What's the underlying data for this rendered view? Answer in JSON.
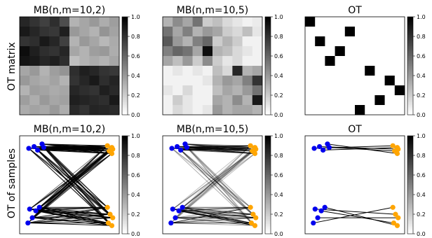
{
  "chart_data": [
    {
      "type": "heatmap",
      "title": "MB(n,m=10,2)",
      "row_label": "OT matrix",
      "colorbar_ticks": [
        "0.0",
        "0.2",
        "0.4",
        "0.6",
        "0.8",
        "1.0"
      ],
      "colorbar_range": [
        0,
        1
      ],
      "colormap": "gray_r",
      "z": [
        [
          0.85,
          0.8,
          0.75,
          0.82,
          0.7,
          0.3,
          0.35,
          0.4,
          0.32,
          0.38
        ],
        [
          0.9,
          0.85,
          0.8,
          0.78,
          0.88,
          0.4,
          0.35,
          0.3,
          0.42,
          0.36
        ],
        [
          0.8,
          0.82,
          0.9,
          0.85,
          0.75,
          0.3,
          0.4,
          0.35,
          0.28,
          0.33
        ],
        [
          0.95,
          0.88,
          0.82,
          0.8,
          0.85,
          0.35,
          0.3,
          0.38,
          0.4,
          0.32
        ],
        [
          0.92,
          0.9,
          0.85,
          0.88,
          0.82,
          0.25,
          0.3,
          0.33,
          0.3,
          0.35
        ],
        [
          0.35,
          0.4,
          0.3,
          0.38,
          0.42,
          0.82,
          0.88,
          0.85,
          0.8,
          0.78
        ],
        [
          0.4,
          0.35,
          0.32,
          0.36,
          0.3,
          0.8,
          0.85,
          0.9,
          0.82,
          0.86
        ],
        [
          0.3,
          0.38,
          0.36,
          0.33,
          0.35,
          0.85,
          0.82,
          0.8,
          0.88,
          0.84
        ],
        [
          0.38,
          0.32,
          0.4,
          0.35,
          0.37,
          0.88,
          0.86,
          0.84,
          0.82,
          0.9
        ],
        [
          0.33,
          0.36,
          0.34,
          0.4,
          0.32,
          0.84,
          0.8,
          0.86,
          0.85,
          0.83
        ]
      ]
    },
    {
      "type": "heatmap",
      "title": "MB(n,m=10,5)",
      "colorbar_ticks": [
        "0.0",
        "0.2",
        "0.4",
        "0.6",
        "0.8",
        "1.0"
      ],
      "colorbar_range": [
        0,
        1
      ],
      "colormap": "gray_r",
      "z": [
        [
          0.3,
          0.45,
          0.35,
          0.55,
          0.2,
          0.25,
          0.15,
          0.1,
          0.05,
          0.08
        ],
        [
          0.55,
          0.35,
          0.5,
          0.3,
          0.4,
          0.35,
          0.2,
          0.15,
          0.25,
          0.1
        ],
        [
          0.65,
          0.4,
          0.3,
          0.5,
          0.6,
          0.2,
          0.3,
          0.2,
          0.05,
          0.05
        ],
        [
          0.5,
          0.6,
          0.55,
          0.35,
          0.95,
          0.3,
          0.25,
          0.15,
          0.1,
          0.05
        ],
        [
          0.35,
          0.25,
          0.4,
          0.2,
          0.45,
          0.2,
          0.1,
          0.15,
          0.05,
          0.05
        ],
        [
          0.05,
          0.1,
          0.05,
          0.1,
          0.05,
          0.25,
          0.15,
          0.85,
          0.3,
          0.35
        ],
        [
          0.05,
          0.05,
          0.05,
          0.05,
          0.1,
          0.3,
          0.4,
          0.35,
          0.5,
          0.8
        ],
        [
          0.1,
          0.05,
          0.15,
          0.05,
          0.05,
          0.25,
          0.35,
          0.3,
          0.4,
          0.55
        ],
        [
          0.05,
          0.2,
          0.1,
          0.05,
          0.05,
          0.35,
          0.3,
          0.45,
          0.3,
          0.9
        ],
        [
          0.05,
          0.15,
          0.1,
          0.05,
          0.1,
          0.4,
          0.3,
          0.35,
          0.35,
          0.3
        ]
      ]
    },
    {
      "type": "heatmap",
      "title": "OT",
      "colorbar_ticks": [
        "0.0",
        "0.2",
        "0.4",
        "0.6",
        "0.8",
        "1.0"
      ],
      "colorbar_range": [
        0,
        1
      ],
      "colormap": "gray_r",
      "z": [
        [
          1,
          0,
          0,
          0,
          0,
          0,
          0,
          0,
          0,
          0
        ],
        [
          0,
          0,
          0,
          0,
          1,
          0,
          0,
          0,
          0,
          0
        ],
        [
          0,
          1,
          0,
          0,
          0,
          0,
          0,
          0,
          0,
          0
        ],
        [
          0,
          0,
          0,
          1,
          0,
          0,
          0,
          0,
          0,
          0
        ],
        [
          0,
          0,
          1,
          0,
          0,
          0,
          0,
          0,
          0,
          0
        ],
        [
          0,
          0,
          0,
          0,
          0,
          0,
          1,
          0,
          0,
          0
        ],
        [
          0,
          0,
          0,
          0,
          0,
          0,
          0,
          0,
          1,
          0
        ],
        [
          0,
          0,
          0,
          0,
          0,
          0,
          0,
          0,
          0,
          1
        ],
        [
          0,
          0,
          0,
          0,
          0,
          0,
          0,
          1,
          0,
          0
        ],
        [
          0,
          0,
          0,
          0,
          0,
          1,
          0,
          0,
          0,
          0
        ]
      ]
    },
    {
      "type": "scatter",
      "title": "MB(n,m=10,2)",
      "row_label": "OT of samples",
      "plan": "mb2",
      "colorbar_ticks": [
        "0.0",
        "0.2",
        "0.4",
        "0.6",
        "0.8",
        "1.0"
      ],
      "colorbar_range": [
        0,
        1
      ]
    },
    {
      "type": "scatter",
      "title": "MB(n,m=10,5)",
      "plan": "mb5",
      "colorbar_ticks": [
        "0.0",
        "0.2",
        "0.4",
        "0.6",
        "0.8",
        "1.0"
      ],
      "colorbar_range": [
        0,
        1
      ]
    },
    {
      "type": "scatter",
      "title": "OT",
      "plan": "ot",
      "colorbar_ticks": [
        "0.0",
        "0.2",
        "0.4",
        "0.6",
        "0.8",
        "1.0"
      ],
      "colorbar_range": [
        0,
        1
      ]
    }
  ],
  "samples": {
    "source_color": "#0000ee",
    "target_color": "#ffa500",
    "source": [
      [
        0.04,
        0.92
      ],
      [
        0.1,
        0.94
      ],
      [
        0.14,
        0.9
      ],
      [
        0.19,
        0.97
      ],
      [
        0.21,
        0.93
      ],
      [
        0.05,
        0.22
      ],
      [
        0.12,
        0.2
      ],
      [
        0.16,
        0.24
      ],
      [
        0.08,
        0.12
      ],
      [
        0.03,
        0.06
      ]
    ],
    "target": [
      [
        0.93,
        0.95
      ],
      [
        0.98,
        0.93
      ],
      [
        0.95,
        0.89
      ],
      [
        0.98,
        0.86
      ],
      [
        0.99,
        0.91
      ],
      [
        0.93,
        0.24
      ],
      [
        0.96,
        0.16
      ],
      [
        0.99,
        0.12
      ],
      [
        0.94,
        0.06
      ],
      [
        0.98,
        0.03
      ]
    ]
  }
}
